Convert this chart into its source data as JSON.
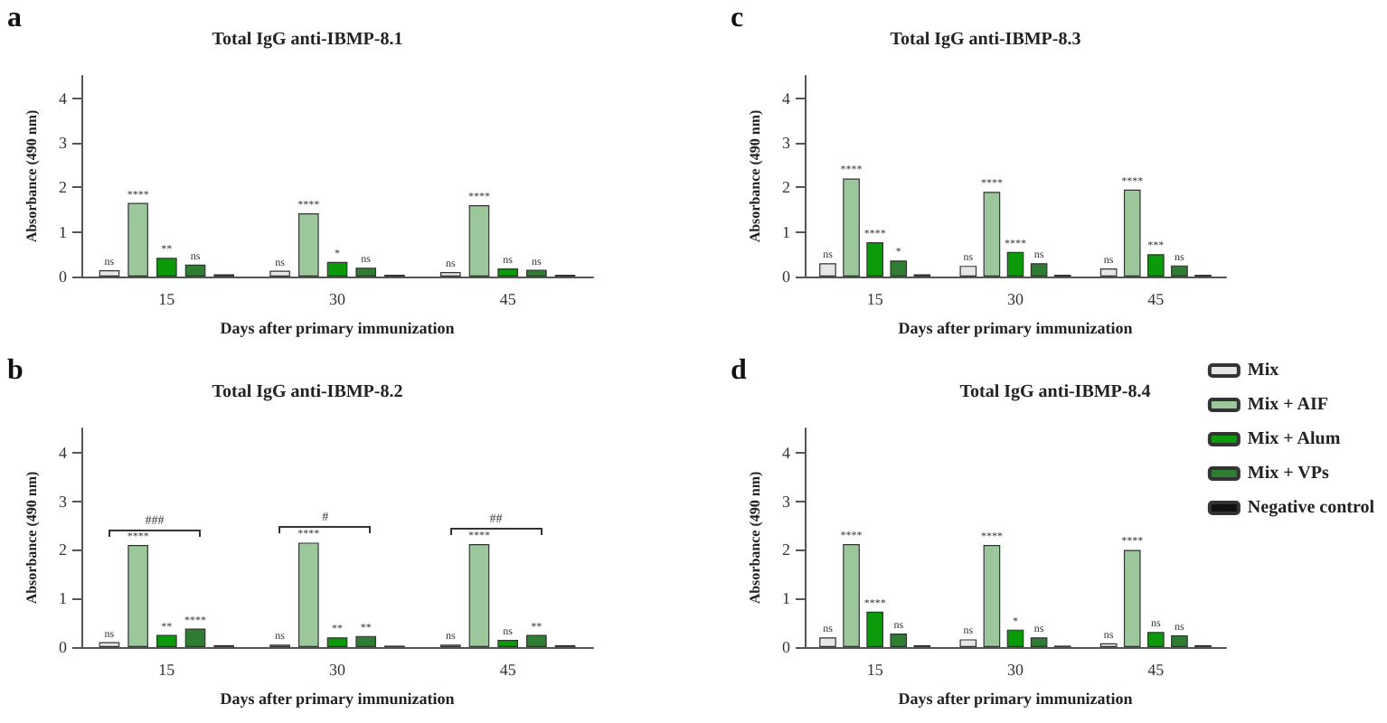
{
  "chart_data": [
    {
      "type": "bar",
      "title": "Total IgG anti-IBMP-8.1",
      "xlabel": "Days after primary immunization",
      "ylabel": "Absorbance (490 nm)",
      "annotations": [
        "a"
      ],
      "categories": [
        "15",
        "30",
        "45"
      ],
      "ylim": [
        0,
        4.5
      ],
      "yticks": [
        0,
        1,
        2,
        3,
        4
      ],
      "series": [
        {
          "color": "#e6e6e6",
          "values": [
            0.14,
            0.13,
            0.1
          ],
          "value_labels": [
            "ns",
            "ns",
            "ns"
          ]
        },
        {
          "color": "#9cc79c",
          "values": [
            1.65,
            1.42,
            1.6
          ],
          "value_labels": [
            "****",
            "****",
            "****"
          ]
        },
        {
          "color": "#0a9a0a",
          "values": [
            0.42,
            0.33,
            0.18
          ],
          "value_labels": [
            "**",
            "*",
            "ns"
          ]
        },
        {
          "color": "#2e7d32",
          "values": [
            0.27,
            0.2,
            0.15
          ],
          "value_labels": [
            "ns",
            "ns",
            "ns"
          ]
        },
        {
          "color": "#111111",
          "values": [
            0.05,
            0.04,
            0.04
          ]
        }
      ]
    },
    {
      "type": "bar",
      "title": "Total IgG anti-IBMP-8.2",
      "xlabel": "Days after primary immunization",
      "ylabel": "Absorbance (490 nm)",
      "annotations": [
        "b",
        "###",
        "#",
        "##"
      ],
      "categories": [
        "15",
        "30",
        "45"
      ],
      "ylim": [
        0,
        4.5
      ],
      "yticks": [
        0,
        1,
        2,
        3,
        4
      ],
      "series": [
        {
          "color": "#e6e6e6",
          "values": [
            0.1,
            0.05,
            0.05
          ],
          "value_labels": [
            "ns",
            "ns",
            "ns"
          ]
        },
        {
          "color": "#9cc79c",
          "values": [
            2.1,
            2.15,
            2.12
          ],
          "value_labels": [
            "****",
            "****",
            "****"
          ]
        },
        {
          "color": "#0a9a0a",
          "values": [
            0.25,
            0.2,
            0.15
          ],
          "value_labels": [
            "**",
            "**",
            "ns"
          ]
        },
        {
          "color": "#2e7d32",
          "values": [
            0.38,
            0.23,
            0.25
          ],
          "value_labels": [
            "****",
            "**",
            "**"
          ]
        },
        {
          "color": "#111111",
          "values": [
            0.04,
            0.03,
            0.04
          ]
        }
      ]
    },
    {
      "type": "bar",
      "title": "Total IgG anti-IBMP-8.3",
      "xlabel": "Days after primary immunization",
      "ylabel": "Absorbance (490 nm)",
      "annotations": [
        "c"
      ],
      "categories": [
        "15",
        "30",
        "45"
      ],
      "ylim": [
        0,
        4.5
      ],
      "yticks": [
        0,
        1,
        2,
        3,
        4
      ],
      "series": [
        {
          "color": "#e6e6e6",
          "values": [
            0.3,
            0.24,
            0.18
          ],
          "value_labels": [
            "ns",
            "ns",
            "ns"
          ]
        },
        {
          "color": "#9cc79c",
          "values": [
            2.2,
            1.9,
            1.95
          ],
          "value_labels": [
            "****",
            "****",
            "****"
          ]
        },
        {
          "color": "#0a9a0a",
          "values": [
            0.77,
            0.55,
            0.5
          ],
          "value_labels": [
            "****",
            "****",
            "***"
          ]
        },
        {
          "color": "#2e7d32",
          "values": [
            0.36,
            0.3,
            0.25
          ],
          "value_labels": [
            "*",
            "ns",
            "ns"
          ]
        },
        {
          "color": "#111111",
          "values": [
            0.05,
            0.04,
            0.04
          ]
        }
      ]
    },
    {
      "type": "bar",
      "title": "Total IgG anti-IBMP-8.4",
      "xlabel": "Days after primary immunization",
      "ylabel": "Absorbance (490 nm)",
      "annotations": [
        "d"
      ],
      "categories": [
        "15",
        "30",
        "45"
      ],
      "ylim": [
        0,
        4.5
      ],
      "yticks": [
        0,
        1,
        2,
        3,
        4
      ],
      "legend": "top right",
      "series": [
        {
          "name": "Mix",
          "color": "#e6e6e6",
          "values": [
            0.2,
            0.16,
            0.08
          ],
          "value_labels": [
            "ns",
            "ns",
            "ns"
          ]
        },
        {
          "name": "Mix + AIF",
          "color": "#9cc79c",
          "values": [
            2.12,
            2.1,
            2.0
          ],
          "value_labels": [
            "****",
            "****",
            "****"
          ]
        },
        {
          "name": "Mix + Alum",
          "color": "#0a9a0a",
          "values": [
            0.73,
            0.36,
            0.31
          ],
          "value_labels": [
            "****",
            "*",
            "ns"
          ]
        },
        {
          "name": "Mix + VPs",
          "color": "#2e7d32",
          "values": [
            0.28,
            0.2,
            0.24
          ],
          "value_labels": [
            "ns",
            "ns",
            "ns"
          ]
        },
        {
          "name": "Negative control",
          "color": "#111111",
          "values": [
            0.04,
            0.03,
            0.04
          ]
        }
      ]
    }
  ]
}
